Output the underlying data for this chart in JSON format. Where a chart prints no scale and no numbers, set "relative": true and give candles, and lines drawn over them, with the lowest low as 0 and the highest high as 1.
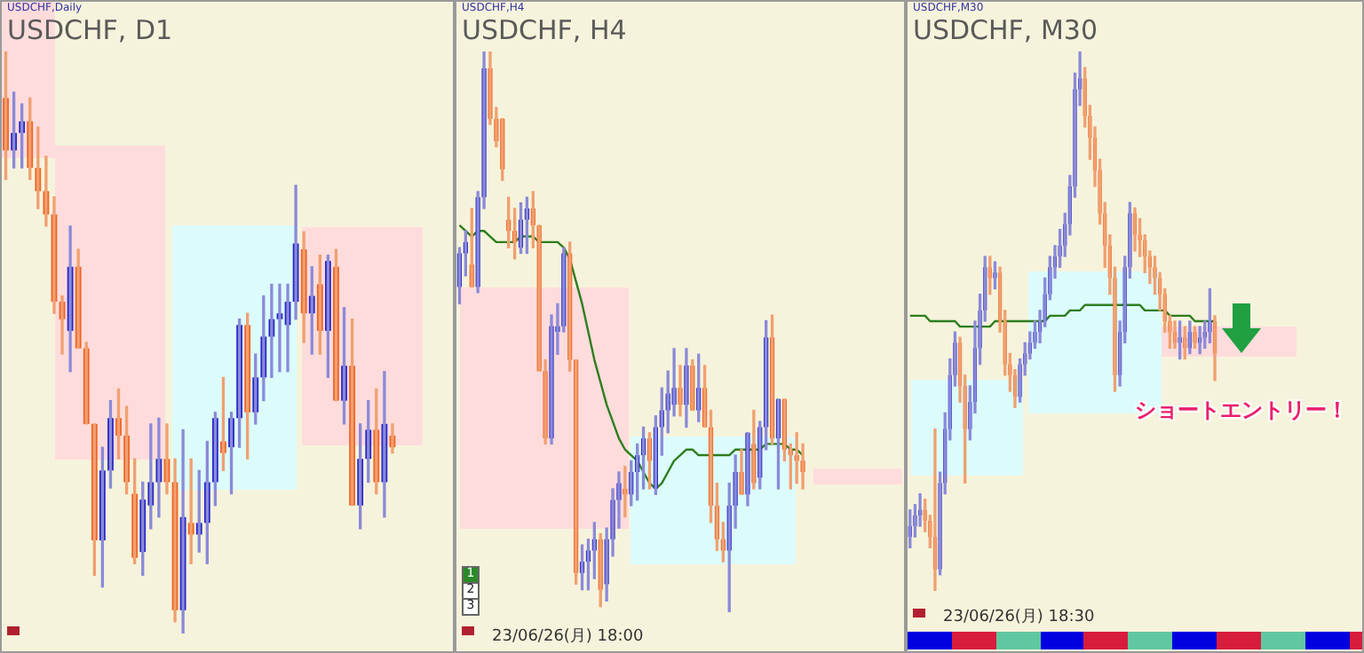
{
  "chart_data": [
    {
      "type": "candlestick",
      "title": "USDCHF, D1",
      "subtitle": "USDCHF,Daily",
      "relative": true,
      "categories": [
        null,
        null,
        null,
        null,
        null,
        null,
        null,
        null,
        null,
        null,
        null,
        null,
        null,
        null,
        null,
        null,
        null,
        null,
        null,
        null,
        null,
        null,
        null,
        null,
        null,
        null,
        null,
        null,
        null,
        null,
        null,
        null,
        null,
        null,
        null,
        null,
        null,
        null,
        null,
        null,
        null,
        null,
        null,
        null,
        null,
        null,
        null,
        null,
        null,
        null,
        null,
        null,
        null,
        null,
        null,
        null
      ],
      "ohlc": [
        [
          0.92,
          1.0,
          0.78,
          0.83
        ],
        [
          0.83,
          0.93,
          0.8,
          0.86
        ],
        [
          0.86,
          0.91,
          0.8,
          0.88
        ],
        [
          0.88,
          0.92,
          0.78,
          0.8
        ],
        [
          0.8,
          0.87,
          0.73,
          0.76
        ],
        [
          0.76,
          0.82,
          0.7,
          0.72
        ],
        [
          0.72,
          0.75,
          0.55,
          0.57
        ],
        [
          0.57,
          0.58,
          0.48,
          0.54
        ],
        [
          0.52,
          0.7,
          0.45,
          0.63
        ],
        [
          0.63,
          0.66,
          0.49,
          0.49
        ],
        [
          0.49,
          0.5,
          0.36,
          0.36
        ],
        [
          0.36,
          0.36,
          0.1,
          0.16
        ],
        [
          0.16,
          0.32,
          0.08,
          0.28
        ],
        [
          0.28,
          0.4,
          0.25,
          0.37
        ],
        [
          0.37,
          0.42,
          0.3,
          0.34
        ],
        [
          0.34,
          0.39,
          0.24,
          0.26
        ],
        [
          0.24,
          0.3,
          0.12,
          0.13
        ],
        [
          0.14,
          0.26,
          0.1,
          0.23
        ],
        [
          0.22,
          0.36,
          0.18,
          0.26
        ],
        [
          0.26,
          0.37,
          0.2,
          0.3
        ],
        [
          0.3,
          0.36,
          0.24,
          0.26
        ],
        [
          0.26,
          0.3,
          0.02,
          0.04
        ],
        [
          0.04,
          0.35,
          0.0,
          0.2
        ],
        [
          0.19,
          0.3,
          0.12,
          0.17
        ],
        [
          0.17,
          0.28,
          0.14,
          0.19
        ],
        [
          0.19,
          0.33,
          0.12,
          0.26
        ],
        [
          0.26,
          0.38,
          0.22,
          0.37
        ],
        [
          0.33,
          0.44,
          0.28,
          0.31
        ],
        [
          0.32,
          0.38,
          0.24,
          0.37
        ],
        [
          0.37,
          0.54,
          0.32,
          0.53
        ],
        [
          0.53,
          0.55,
          0.3,
          0.38
        ],
        [
          0.38,
          0.48,
          0.36,
          0.44
        ],
        [
          0.44,
          0.58,
          0.4,
          0.51
        ],
        [
          0.51,
          0.6,
          0.44,
          0.54
        ],
        [
          0.54,
          0.6,
          0.45,
          0.55
        ],
        [
          0.53,
          0.6,
          0.45,
          0.57
        ],
        [
          0.57,
          0.77,
          0.54,
          0.67
        ],
        [
          0.66,
          0.69,
          0.5,
          0.55
        ],
        [
          0.55,
          0.63,
          0.48,
          0.58
        ],
        [
          0.6,
          0.65,
          0.48,
          0.52
        ],
        [
          0.52,
          0.65,
          0.44,
          0.64
        ],
        [
          0.63,
          0.66,
          0.4,
          0.4
        ],
        [
          0.4,
          0.56,
          0.36,
          0.46
        ],
        [
          0.46,
          0.54,
          0.22,
          0.22
        ],
        [
          0.22,
          0.36,
          0.18,
          0.3
        ],
        [
          0.3,
          0.4,
          0.26,
          0.35
        ],
        [
          0.35,
          0.42,
          0.24,
          0.26
        ],
        [
          0.26,
          0.45,
          0.2,
          0.36
        ],
        [
          0.34,
          0.36,
          0.31,
          0.32
        ],
        null,
        null,
        null,
        null,
        null,
        null,
        null
      ]
    },
    {
      "type": "candlestick",
      "title": "USDCHF, H4",
      "subtitle": "USDCHF,H4",
      "relative": true,
      "categories": [
        null,
        null,
        null,
        null,
        null,
        null,
        null,
        null,
        null,
        null,
        null,
        null,
        null,
        null,
        null,
        null,
        null,
        null,
        null,
        null,
        null,
        null,
        null,
        null,
        null,
        null,
        null,
        null,
        null,
        null,
        null,
        null,
        null,
        null,
        null,
        null,
        null,
        null,
        null,
        null,
        null,
        null,
        null,
        null,
        null,
        null,
        null,
        null,
        null,
        null,
        null,
        null,
        null,
        null,
        null,
        null,
        null,
        null,
        null,
        null,
        null,
        null,
        null,
        null,
        null,
        null,
        null,
        null,
        null,
        null,
        null,
        null,
        null
      ],
      "ohlc": [
        [
          0.58,
          0.65,
          0.55,
          0.64
        ],
        [
          0.64,
          0.68,
          0.6,
          0.66
        ],
        [
          0.62,
          0.72,
          0.58,
          0.58
        ],
        [
          0.58,
          0.75,
          0.57,
          0.74
        ],
        [
          0.74,
          1.0,
          0.72,
          0.97
        ],
        [
          0.97,
          1.0,
          0.87,
          0.88
        ],
        [
          0.88,
          0.9,
          0.83,
          0.84
        ],
        [
          0.88,
          0.88,
          0.77,
          0.79
        ],
        [
          0.7,
          0.74,
          0.65,
          0.68
        ],
        [
          0.68,
          0.72,
          0.63,
          0.66
        ],
        [
          0.65,
          0.73,
          0.64,
          0.7
        ],
        [
          0.7,
          0.74,
          0.64,
          0.72
        ],
        [
          0.72,
          0.75,
          0.65,
          0.69
        ],
        [
          0.69,
          0.69,
          0.43,
          0.43
        ],
        [
          0.43,
          0.45,
          0.3,
          0.31
        ],
        [
          0.31,
          0.53,
          0.3,
          0.51
        ],
        [
          0.5,
          0.55,
          0.46,
          0.51
        ],
        [
          0.51,
          0.65,
          0.5,
          0.64
        ],
        [
          0.64,
          0.66,
          0.43,
          0.45
        ],
        [
          0.45,
          0.45,
          0.05,
          0.07
        ],
        [
          0.07,
          0.12,
          0.04,
          0.09
        ],
        [
          0.09,
          0.13,
          0.04,
          0.11
        ],
        [
          0.11,
          0.16,
          0.06,
          0.13
        ],
        [
          0.13,
          0.14,
          0.01,
          0.04
        ],
        [
          0.05,
          0.15,
          0.02,
          0.13
        ],
        [
          0.13,
          0.22,
          0.1,
          0.2
        ],
        [
          0.2,
          0.25,
          0.15,
          0.23
        ],
        [
          0.22,
          0.26,
          0.17,
          0.21
        ],
        [
          0.21,
          0.27,
          0.19,
          0.25
        ],
        [
          0.25,
          0.3,
          0.2,
          0.28
        ],
        [
          0.28,
          0.33,
          0.22,
          0.31
        ],
        [
          0.31,
          0.32,
          0.22,
          0.27
        ],
        [
          0.22,
          0.35,
          0.21,
          0.33
        ],
        [
          0.33,
          0.4,
          0.28,
          0.36
        ],
        [
          0.36,
          0.43,
          0.32,
          0.39
        ],
        [
          0.37,
          0.47,
          0.35,
          0.4
        ],
        [
          0.4,
          0.44,
          0.35,
          0.37
        ],
        [
          0.37,
          0.47,
          0.33,
          0.44
        ],
        [
          0.44,
          0.45,
          0.36,
          0.36
        ],
        [
          0.36,
          0.46,
          0.34,
          0.4
        ],
        [
          0.4,
          0.44,
          0.33,
          0.33
        ],
        [
          0.33,
          0.36,
          0.16,
          0.19
        ],
        [
          0.19,
          0.23,
          0.11,
          0.13
        ],
        [
          0.13,
          0.16,
          0.09,
          0.11
        ],
        [
          0.11,
          0.23,
          0.0,
          0.19
        ],
        [
          0.19,
          0.28,
          0.15,
          0.25
        ],
        [
          0.25,
          0.29,
          0.21,
          0.21
        ],
        [
          0.21,
          0.32,
          0.19,
          0.32
        ],
        [
          0.3,
          0.36,
          0.22,
          0.23
        ],
        [
          0.24,
          0.34,
          0.22,
          0.33
        ],
        [
          0.33,
          0.52,
          0.29,
          0.49
        ],
        [
          0.49,
          0.53,
          0.3,
          0.31
        ],
        [
          0.31,
          0.38,
          0.22,
          0.38
        ],
        [
          0.38,
          0.38,
          0.27,
          0.29
        ],
        [
          0.29,
          0.3,
          0.22,
          0.28
        ],
        [
          0.28,
          0.32,
          0.23,
          0.27
        ],
        [
          0.27,
          0.3,
          0.22,
          0.25
        ],
        null,
        null,
        null,
        null,
        null,
        null,
        null,
        null,
        null,
        null,
        null,
        null,
        null,
        null,
        null,
        null
      ],
      "series": [
        {
          "type": "line",
          "color": "#2e7d1e",
          "values": [
            0.69,
            0.68,
            0.67,
            0.68,
            0.68,
            0.67,
            0.66,
            0.66,
            0.66,
            0.66,
            0.67,
            0.67,
            0.67,
            0.66,
            0.66,
            0.66,
            0.66,
            0.65,
            0.63,
            0.59,
            0.55,
            0.5,
            0.45,
            0.41,
            0.37,
            0.34,
            0.31,
            0.29,
            0.28,
            0.27,
            0.25,
            0.23,
            0.22,
            0.23,
            0.25,
            0.27,
            0.28,
            0.29,
            0.29,
            0.28,
            0.28,
            0.28,
            0.28,
            0.28,
            0.28,
            0.29,
            0.29,
            0.29,
            0.29,
            0.29,
            0.3,
            0.3,
            0.3,
            0.3,
            0.29,
            0.29,
            0.28,
            null,
            null,
            null,
            null,
            null,
            null,
            null,
            null,
            null,
            null,
            null,
            null,
            null,
            null,
            null,
            null
          ]
        }
      ],
      "annotations": [
        "1",
        "2",
        "3",
        "23/06/26(月) 18:00"
      ]
    },
    {
      "type": "candlestick",
      "title": "USDCHF, M30",
      "subtitle": "USDCHF,M30",
      "relative": true,
      "categories": [
        null,
        null,
        null,
        null,
        null,
        null,
        null,
        null,
        null,
        null,
        null,
        null,
        null,
        null,
        null,
        null,
        null,
        null,
        null,
        null,
        null,
        null,
        null,
        null,
        null,
        null,
        null,
        null,
        null,
        null,
        null,
        null,
        null,
        null,
        null,
        null,
        null,
        null,
        null,
        null,
        null,
        null,
        null,
        null,
        null,
        null,
        null,
        null,
        null,
        null,
        null,
        null,
        null,
        null,
        null,
        null,
        null,
        null,
        null,
        null,
        null,
        null,
        null,
        null,
        null,
        null,
        null,
        null,
        null,
        null,
        null,
        null,
        null,
        null,
        null,
        null,
        null,
        null,
        null,
        null,
        null,
        null,
        null,
        null,
        null,
        null,
        null,
        null,
        null,
        null,
        null
      ],
      "ohlc": [
        [
          0.1,
          0.15,
          0.08,
          0.12
        ],
        [
          0.12,
          0.16,
          0.1,
          0.14
        ],
        [
          0.14,
          0.18,
          0.12,
          0.15
        ],
        [
          0.15,
          0.17,
          0.11,
          0.13
        ],
        [
          0.13,
          0.14,
          0.08,
          0.1
        ],
        [
          0.1,
          0.3,
          0.0,
          0.04
        ],
        [
          0.04,
          0.22,
          0.03,
          0.2
        ],
        [
          0.2,
          0.33,
          0.18,
          0.3
        ],
        [
          0.3,
          0.43,
          0.28,
          0.4
        ],
        [
          0.4,
          0.48,
          0.38,
          0.46
        ],
        [
          0.46,
          0.47,
          0.35,
          0.38
        ],
        [
          0.38,
          0.4,
          0.2,
          0.3
        ],
        [
          0.3,
          0.38,
          0.28,
          0.35
        ],
        [
          0.35,
          0.5,
          0.33,
          0.45
        ],
        [
          0.45,
          0.55,
          0.42,
          0.52
        ],
        [
          0.52,
          0.62,
          0.5,
          0.6
        ],
        [
          0.6,
          0.62,
          0.55,
          0.58
        ],
        [
          0.58,
          0.61,
          0.56,
          0.59
        ],
        [
          0.59,
          0.6,
          0.48,
          0.5
        ],
        [
          0.5,
          0.52,
          0.4,
          0.42
        ],
        [
          0.42,
          0.44,
          0.37,
          0.4
        ],
        [
          0.4,
          0.41,
          0.34,
          0.36
        ],
        [
          0.36,
          0.43,
          0.35,
          0.42
        ],
        [
          0.42,
          0.46,
          0.4,
          0.44
        ],
        [
          0.44,
          0.48,
          0.43,
          0.46
        ],
        [
          0.46,
          0.5,
          0.45,
          0.48
        ],
        [
          0.48,
          0.52,
          0.46,
          0.5
        ],
        [
          0.5,
          0.58,
          0.49,
          0.55
        ],
        [
          0.55,
          0.62,
          0.54,
          0.6
        ],
        [
          0.6,
          0.64,
          0.58,
          0.62
        ],
        [
          0.62,
          0.67,
          0.6,
          0.64
        ],
        [
          0.64,
          0.7,
          0.62,
          0.68
        ],
        [
          0.68,
          0.77,
          0.66,
          0.75
        ],
        [
          0.75,
          0.96,
          0.73,
          0.93
        ],
        [
          0.93,
          1.0,
          0.9,
          0.95
        ],
        [
          0.95,
          0.97,
          0.86,
          0.88
        ],
        [
          0.88,
          0.9,
          0.8,
          0.84
        ],
        [
          0.84,
          0.86,
          0.75,
          0.78
        ],
        [
          0.78,
          0.8,
          0.68,
          0.7
        ],
        [
          0.7,
          0.72,
          0.6,
          0.64
        ],
        [
          0.64,
          0.66,
          0.55,
          0.58
        ],
        [
          0.58,
          0.6,
          0.37,
          0.4
        ],
        [
          0.4,
          0.5,
          0.38,
          0.48
        ],
        [
          0.48,
          0.62,
          0.46,
          0.6
        ],
        [
          0.6,
          0.72,
          0.58,
          0.7
        ],
        [
          0.7,
          0.71,
          0.63,
          0.66
        ],
        [
          0.66,
          0.69,
          0.62,
          0.65
        ],
        [
          0.65,
          0.66,
          0.59,
          0.62
        ],
        [
          0.62,
          0.63,
          0.57,
          0.6
        ],
        [
          0.6,
          0.62,
          0.55,
          0.58
        ],
        [
          0.58,
          0.59,
          0.52,
          0.55
        ],
        [
          0.55,
          0.56,
          0.48,
          0.5
        ],
        [
          0.5,
          0.51,
          0.45,
          0.48
        ],
        [
          0.48,
          0.5,
          0.45,
          0.46
        ],
        [
          0.46,
          0.5,
          0.43,
          0.47
        ],
        [
          0.47,
          0.49,
          0.43,
          0.45
        ],
        [
          0.45,
          0.5,
          0.44,
          0.48
        ],
        [
          0.48,
          0.49,
          0.45,
          0.46
        ],
        [
          0.46,
          0.49,
          0.44,
          0.47
        ],
        [
          0.47,
          0.5,
          0.45,
          0.48
        ],
        [
          0.48,
          0.56,
          0.46,
          0.5
        ],
        [
          0.5,
          0.51,
          0.39,
          0.44
        ],
        null,
        null,
        null,
        null,
        null,
        null,
        null,
        null,
        null,
        null,
        null,
        null,
        null,
        null,
        null,
        null,
        null,
        null,
        null,
        null,
        null,
        null,
        null,
        null,
        null,
        null,
        null,
        null,
        null
      ],
      "series": [
        {
          "type": "line",
          "color": "#2e7d1e",
          "values": [
            0.51,
            0.51,
            0.51,
            0.51,
            0.5,
            0.5,
            0.5,
            0.5,
            0.5,
            0.5,
            0.49,
            0.49,
            0.49,
            0.49,
            0.49,
            0.49,
            0.49,
            0.5,
            0.5,
            0.5,
            0.5,
            0.5,
            0.5,
            0.5,
            0.5,
            0.5,
            0.5,
            0.5,
            0.51,
            0.51,
            0.51,
            0.51,
            0.52,
            0.52,
            0.52,
            0.53,
            0.53,
            0.53,
            0.53,
            0.53,
            0.53,
            0.53,
            0.53,
            0.53,
            0.53,
            0.53,
            0.53,
            0.52,
            0.52,
            0.52,
            0.52,
            0.52,
            0.51,
            0.51,
            0.51,
            0.51,
            0.51,
            0.5,
            0.5,
            0.5,
            0.5,
            0.5,
            null,
            null,
            null,
            null,
            null,
            null,
            null,
            null,
            null,
            null,
            null,
            null,
            null,
            null,
            null,
            null,
            null,
            null,
            null,
            null,
            null,
            null,
            null,
            null,
            null,
            null,
            null,
            null,
            null
          ]
        }
      ],
      "annotations": [
        "ショートエントリー！",
        "23/06/26(月) 18:30"
      ]
    }
  ]
}
